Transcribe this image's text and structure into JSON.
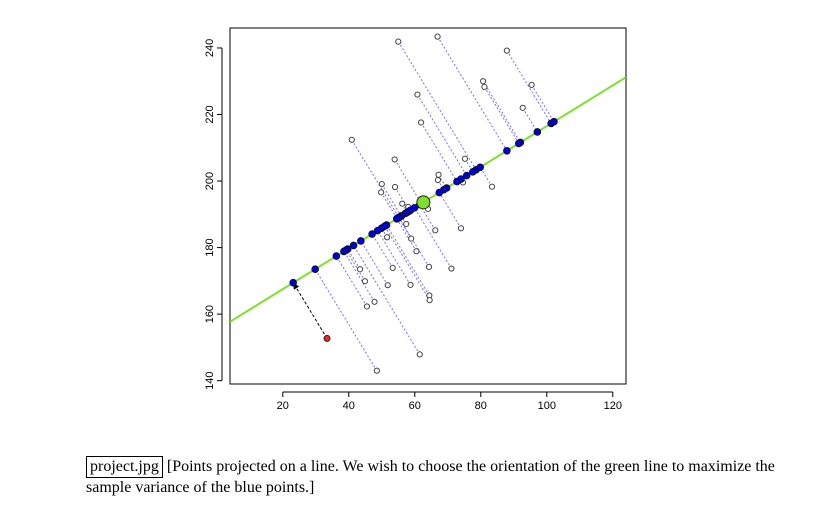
{
  "chart_data": {
    "type": "scatter",
    "title": "",
    "xlabel": "",
    "ylabel": "",
    "xlim": [
      4,
      124
    ],
    "ylim": [
      139,
      246
    ],
    "xticks": [
      20,
      40,
      60,
      80,
      100,
      120
    ],
    "yticks": [
      140,
      160,
      180,
      200,
      220,
      240
    ],
    "grid": false,
    "line": {
      "color": "#7fe02a",
      "through": [
        62.6,
        193.6
      ],
      "slope": 0.6125
    },
    "mean_point": {
      "x": 62.6,
      "y": 193.6,
      "color": "#7fe02a"
    },
    "projection_color": "#0000dd",
    "series": [
      {
        "name": "",
        "color": "#ffffff",
        "points": [
          [
            55.0,
            241.9
          ],
          [
            66.9,
            243.4
          ],
          [
            87.9,
            239.2
          ],
          [
            80.7,
            230.0
          ],
          [
            81.1,
            228.3
          ],
          [
            95.4,
            228.9
          ],
          [
            60.8,
            226.0
          ],
          [
            92.7,
            222.0
          ],
          [
            61.9,
            217.6
          ],
          [
            40.9,
            212.4
          ],
          [
            53.9,
            206.5
          ],
          [
            75.2,
            206.7
          ],
          [
            67.2,
            201.9
          ],
          [
            67.0,
            200.3
          ],
          [
            74.6,
            199.6
          ],
          [
            83.4,
            198.3
          ],
          [
            50.0,
            199.1
          ],
          [
            54.0,
            198.2
          ],
          [
            49.8,
            196.6
          ],
          [
            56.2,
            193.2
          ],
          [
            58.0,
            192.2
          ],
          [
            64.0,
            191.6
          ],
          [
            57.1,
            190.3
          ],
          [
            57.4,
            187.1
          ],
          [
            66.2,
            185.2
          ],
          [
            74.0,
            185.8
          ],
          [
            51.6,
            183.1
          ],
          [
            58.9,
            182.7
          ],
          [
            60.5,
            178.9
          ],
          [
            64.3,
            174.2
          ],
          [
            71.1,
            173.7
          ],
          [
            53.3,
            173.9
          ],
          [
            43.4,
            173.5
          ],
          [
            44.9,
            169.9
          ],
          [
            51.8,
            168.7
          ],
          [
            58.7,
            168.8
          ],
          [
            64.4,
            165.6
          ],
          [
            64.5,
            164.2
          ],
          [
            47.8,
            163.7
          ],
          [
            45.5,
            162.3
          ],
          [
            61.5,
            147.9
          ],
          [
            48.5,
            143.0
          ]
        ]
      },
      {
        "name": "",
        "color": "#ff2020",
        "points": [
          [
            33.4,
            152.7
          ]
        ]
      }
    ]
  },
  "caption": {
    "filename": "project.jpg",
    "text": "[Points projected on a line. We wish to choose the orientation of the green line to maximize the sample variance of the blue points.]"
  }
}
